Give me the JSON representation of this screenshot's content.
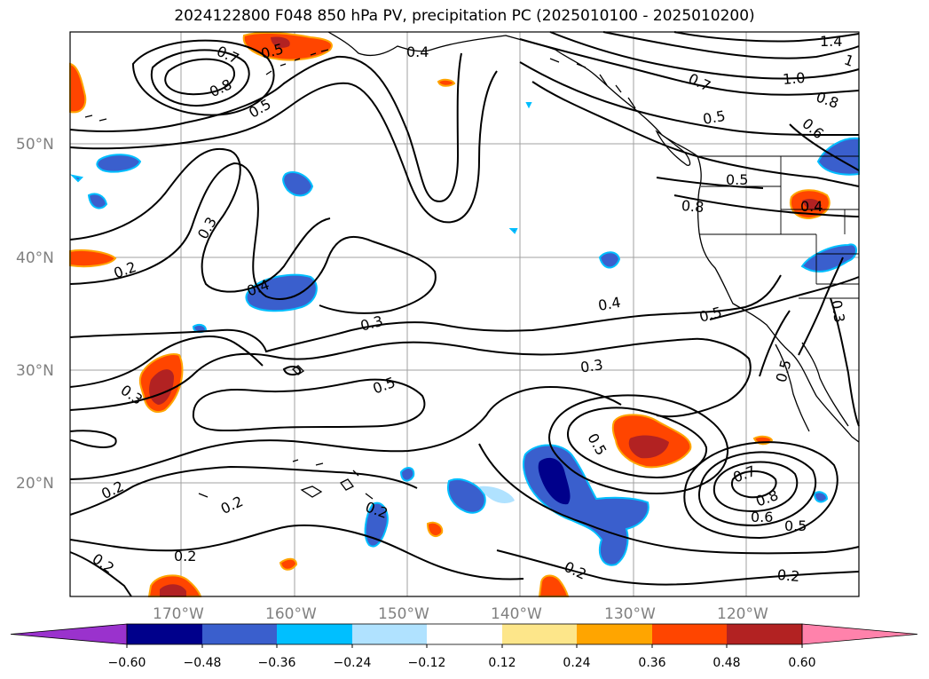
{
  "title": "2024122800 F048 850 hPa PV, precipitation PC (2025010100 - 2025010200)",
  "map": {
    "lon_labels": [
      "170°W",
      "160°W",
      "150°W",
      "140°W",
      "130°W",
      "120°W"
    ],
    "lat_labels": [
      "50°N",
      "40°N",
      "30°N",
      "20°N"
    ],
    "contour_labels": [
      "0.7",
      "0.8",
      "0.5",
      "0.4",
      "0.3",
      "0.2",
      "0.4",
      "0.3",
      "0.5",
      "0.3",
      "0.2",
      "0.2",
      "0.2",
      "0.2",
      "0.2",
      "0.3",
      "0.4",
      "0.5",
      "0.5",
      "0.7",
      "1.0",
      "0.8",
      "0.5",
      "0.6",
      "0.5",
      "0.8",
      "0.4",
      "1.4",
      "1",
      "0.5",
      "0.3",
      "0.5",
      "0.7",
      "0.8",
      "0.6",
      "0.5",
      "0.2",
      "0.2"
    ]
  },
  "colorbar": {
    "ticks": [
      "−0.60",
      "−0.48",
      "−0.36",
      "−0.24",
      "−0.12",
      "0.12",
      "0.24",
      "0.36",
      "0.48",
      "0.60"
    ],
    "colors": [
      "#9a32cd",
      "#00008b",
      "#3a5fcd",
      "#00bfff",
      "#b0e2ff",
      "#ffffff",
      "#fde68a",
      "#ffa500",
      "#ff4500",
      "#b22222",
      "#ff82ab"
    ]
  }
}
